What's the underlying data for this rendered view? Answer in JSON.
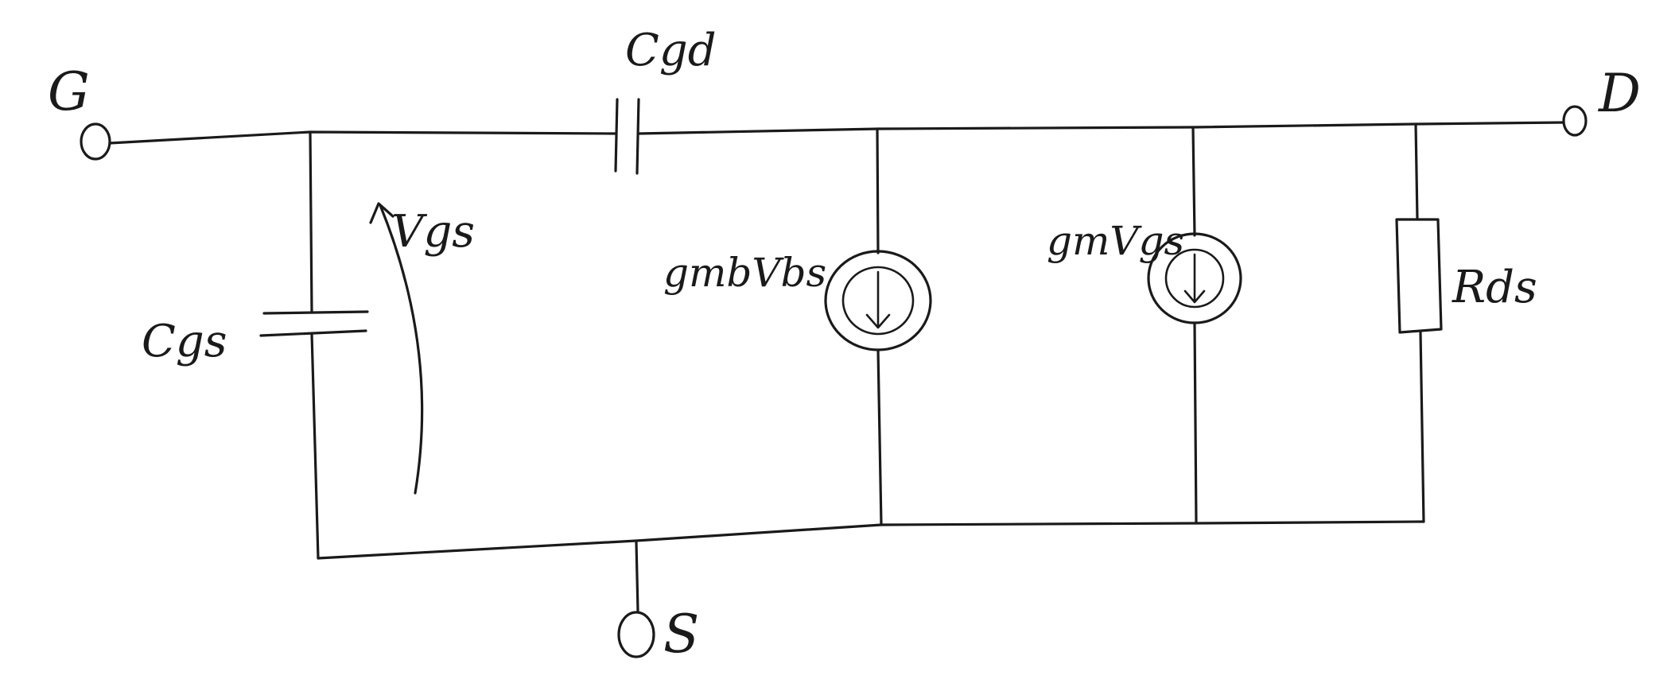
{
  "terminals": {
    "gate": "G",
    "drain": "D",
    "source": "S"
  },
  "components": {
    "cgd": "Cgd",
    "cgs": "Cgs",
    "vgs": "Vgs",
    "gmb_source": "gmbVbs",
    "gm_source": "gmVgs",
    "rds": "Rds"
  },
  "colors": {
    "ink": "#1a1a1a",
    "paper": "#ffffff"
  }
}
